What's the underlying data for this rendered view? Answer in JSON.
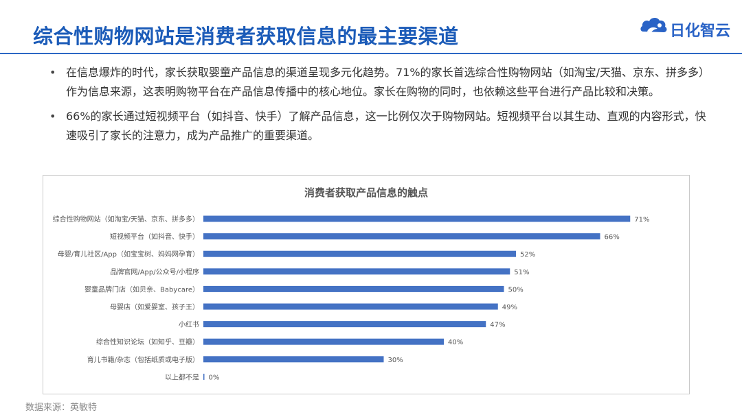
{
  "slide": {
    "title": "综合性购物网站是消费者获取信息的最主要渠道"
  },
  "logo": {
    "text": "日化智云",
    "icon": "cloud-logo-icon",
    "color": "#2a63c6"
  },
  "bullets": [
    {
      "text": "在信息爆炸的时代，家长获取婴童产品信息的渠道呈现多元化趋势。71%的家长首选综合性购物网站（如淘宝/天猫、京东、拼多多）作为信息来源，这表明购物平台在产品信息传播中的核心地位。家长在购物的同时，也依赖这些平台进行产品比较和决策。"
    },
    {
      "text": "66%的家长通过短视频平台（如抖音、快手）了解产品信息，这一比例仅次于购物网站。短视频平台以其生动、直观的内容形式，快速吸引了家长的注意力，成为产品推广的重要渠道。"
    }
  ],
  "chart_data": {
    "type": "bar",
    "orientation": "horizontal",
    "title": "消费者获取产品信息的触点",
    "categories": [
      "综合性购物网站（如淘宝/天猫、京东、拼多多）",
      "短视频平台（如抖音、快手）",
      "母婴/育儿社区/App（如宝宝树、妈妈网孕育）",
      "品牌官网/App/公众号/小程序",
      "婴童品牌门店（如贝亲、Babycare）",
      "母婴店（如爱婴室、孩子王）",
      "小红书",
      "综合性知识论坛（如知乎、豆瓣）",
      "育儿书籍/杂志（包括纸质或电子版）",
      "以上都不是"
    ],
    "values": [
      71,
      66,
      52,
      51,
      50,
      49,
      47,
      40,
      30,
      0
    ],
    "value_labels": [
      "71%",
      "66%",
      "52%",
      "51%",
      "50%",
      "49%",
      "47%",
      "40%",
      "30%",
      "0%"
    ],
    "xlim": [
      0,
      100
    ],
    "grid": false,
    "legend": "none",
    "bar_color": "#4472c4"
  },
  "source": "数据来源：英敏特",
  "colors": {
    "title": "#1b5bb8",
    "rule": "#2b67c4",
    "bar": "#4472c4"
  }
}
